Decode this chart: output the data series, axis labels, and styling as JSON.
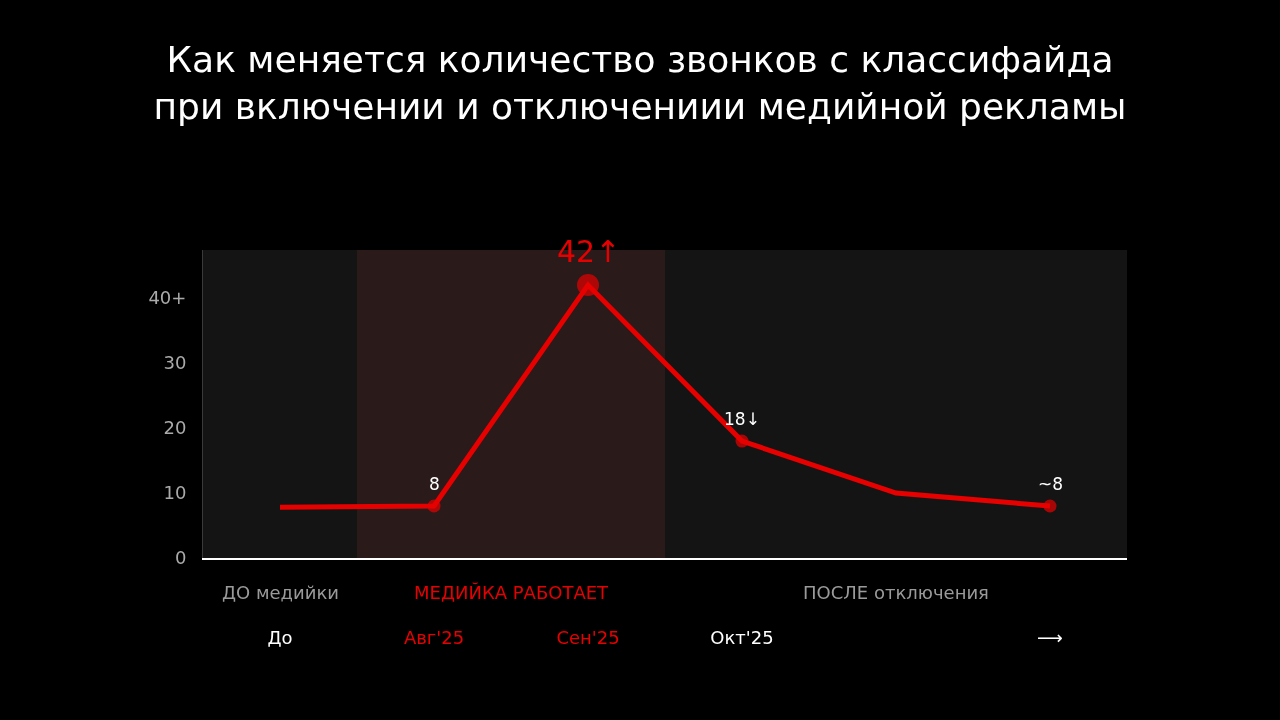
{
  "chart_data": {
    "type": "line",
    "title": "Как меняется количество звонков с классифайда\nпри включении и отключениии медийной рекламы",
    "categories": [
      "До",
      "Авг'25",
      "Сен'25",
      "Окт'25",
      null,
      "⟶"
    ],
    "series": [
      {
        "color": "#e60000",
        "values": [
          7.8,
          8,
          42,
          18,
          10,
          8
        ],
        "value_labels": [
          null,
          "8",
          "42↑",
          "18↓",
          null,
          "~8"
        ]
      }
    ],
    "ylim": [
      0,
      47.4
    ],
    "yticks": [
      0,
      10,
      20,
      30,
      {
        "value": 40,
        "label": "40+"
      }
    ],
    "bands": [
      {
        "axis": "x",
        "from": "До",
        "to": "До",
        "label": "ДО медийки",
        "color": "#141414"
      },
      {
        "axis": "x",
        "from": "Авг'25",
        "to": "Сен'25",
        "label": "МЕДИЙКА РАБОТАЕТ",
        "color": "#2a1a1a"
      },
      {
        "axis": "x",
        "from": "Окт'25",
        "to": "⟶",
        "label": "ПОСЛЕ отключения",
        "color": "#141414"
      }
    ],
    "marker": "circle",
    "line_style": "solid",
    "grid": false,
    "legend": false
  }
}
